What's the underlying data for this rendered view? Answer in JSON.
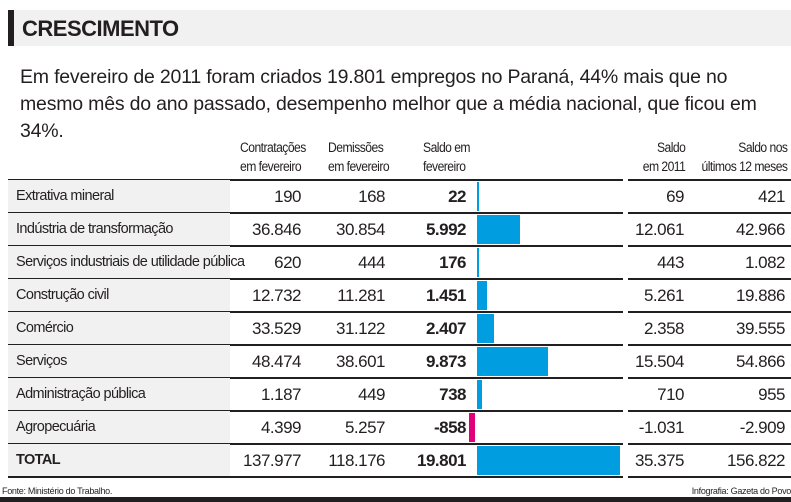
{
  "title": "CRESCIMENTO",
  "intro": "Em fevereiro de 2011 foram criados 19.801 empregos no Paraná, 44% mais que no mesmo mês do ano passado, desempenho melhor que a média nacional, que ficou em 34%.",
  "headers": {
    "contratacoes": [
      "Contratações",
      "em fevereiro"
    ],
    "demissoes": [
      "Demissões",
      "em fevereiro"
    ],
    "saldo": [
      "Saldo em",
      "fevereiro"
    ],
    "saldo2011": [
      "Saldo",
      "em 2011"
    ],
    "saldo12": [
      "Saldo nos",
      "últimos 12 meses"
    ]
  },
  "colors": {
    "positive": "#009ee0",
    "negative": "#e2007a",
    "label_bg": "#f1f1f1"
  },
  "chart_data": {
    "type": "table",
    "columns": [
      "",
      "Contratações em fevereiro",
      "Demissões em fevereiro",
      "Saldo em fevereiro",
      "Saldo em 2011",
      "Saldo nos últimos 12 meses"
    ],
    "bar_column": "Saldo em fevereiro",
    "rows": [
      {
        "label": "Extrativa mineral",
        "contratacoes": "190",
        "demissoes": "168",
        "saldo": "22",
        "saldo_value": 22,
        "saldo2011": "69",
        "saldo12": "421"
      },
      {
        "label": "Indústria de transformação",
        "contratacoes": "36.846",
        "demissoes": "30.854",
        "saldo": "5.992",
        "saldo_value": 5992,
        "saldo2011": "12.061",
        "saldo12": "42.966"
      },
      {
        "label": "Serviços industriais de utilidade pública",
        "contratacoes": "620",
        "demissoes": "444",
        "saldo": "176",
        "saldo_value": 176,
        "saldo2011": "443",
        "saldo12": "1.082"
      },
      {
        "label": "Construção civil",
        "contratacoes": "12.732",
        "demissoes": "11.281",
        "saldo": "1.451",
        "saldo_value": 1451,
        "saldo2011": "5.261",
        "saldo12": "19.886"
      },
      {
        "label": "Comércio",
        "contratacoes": "33.529",
        "demissoes": "31.122",
        "saldo": "2.407",
        "saldo_value": 2407,
        "saldo2011": "2.358",
        "saldo12": "39.555"
      },
      {
        "label": "Serviços",
        "contratacoes": "48.474",
        "demissoes": "38.601",
        "saldo": "9.873",
        "saldo_value": 9873,
        "saldo2011": "15.504",
        "saldo12": "54.866"
      },
      {
        "label": "Administração pública",
        "contratacoes": "1.187",
        "demissoes": "449",
        "saldo": "738",
        "saldo_value": 738,
        "saldo2011": "710",
        "saldo12": "955"
      },
      {
        "label": "Agropecuária",
        "contratacoes": "4.399",
        "demissoes": "5.257",
        "saldo": "-858",
        "saldo_value": -858,
        "saldo2011": "-1.031",
        "saldo12": "-2.909"
      },
      {
        "label": "TOTAL",
        "contratacoes": "137.977",
        "demissoes": "118.176",
        "saldo": "19.801",
        "saldo_value": 19801,
        "saldo2011": "35.375",
        "saldo12": "156.822"
      }
    ]
  },
  "footer": {
    "source": "Fonte: Ministério do Trabalho.",
    "credit": "Infografia: Gazeta do Povo"
  }
}
